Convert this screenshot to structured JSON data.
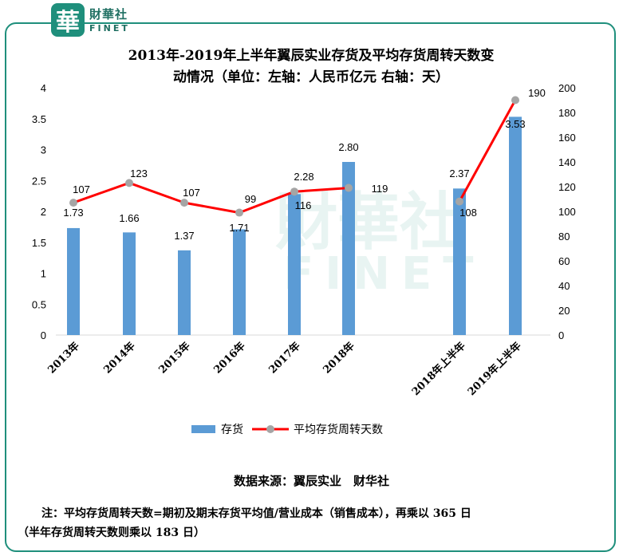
{
  "brand": {
    "logo_char": "華",
    "name_cn": "財華社",
    "name_en": "FINET"
  },
  "watermark": {
    "cn": "財華社",
    "en": "FINET"
  },
  "colors": {
    "bar": "#5b9bd5",
    "line": "#ff0000",
    "marker": "#a5a5a5",
    "frame": "#1f8f7c"
  },
  "chart_data": {
    "type": "bar",
    "title": "2013年-2019年上半年翼辰实业存货及平均存货周转天数变动情况（单位：左轴：人民币亿元 右轴：天）",
    "title_lines": [
      "2013年-2019年上半年翼辰实业存货及平均存货周转天数变",
      "动情况（单位：左轴：人民币亿元 右轴：天）"
    ],
    "categories": [
      "2013年",
      "2014年",
      "2015年",
      "2016年",
      "2017年",
      "2018年",
      "2018年上半年",
      "2019年上半年"
    ],
    "series": [
      {
        "name": "存货",
        "type": "bar",
        "axis": "left",
        "values": [
          1.73,
          1.66,
          1.37,
          1.71,
          2.28,
          2.8,
          2.37,
          3.53
        ],
        "labels": [
          "1.73",
          "1.66",
          "1.37",
          "1.71",
          "2.28",
          "2.80",
          "2.37",
          "3.53"
        ]
      },
      {
        "name": "平均存货周转天数",
        "type": "line",
        "axis": "right",
        "values": [
          107,
          123,
          107,
          99,
          116,
          119,
          108,
          190
        ],
        "labels": [
          "107",
          "123",
          "107",
          "99",
          "116",
          "119",
          "108",
          "190"
        ]
      }
    ],
    "y_left": {
      "ylim": [
        0,
        4
      ],
      "ticks": [
        "0",
        "0.5",
        "1",
        "1.5",
        "2",
        "2.5",
        "3",
        "3.5",
        "4"
      ]
    },
    "y_right": {
      "ylim": [
        0,
        200
      ],
      "ticks": [
        "0",
        "20",
        "40",
        "60",
        "80",
        "100",
        "120",
        "140",
        "160",
        "180",
        "200"
      ]
    },
    "legend_position": "bottom",
    "grid": false
  },
  "footer": {
    "source": "数据来源：翼辰实业　财华社",
    "note_line1": "注：平均存货周转天数=期初及期末存货平均值/营业成本（销售成本），再乘以 365 日",
    "note_line2": "（半年存货周转天数则乘以 183 日）"
  }
}
